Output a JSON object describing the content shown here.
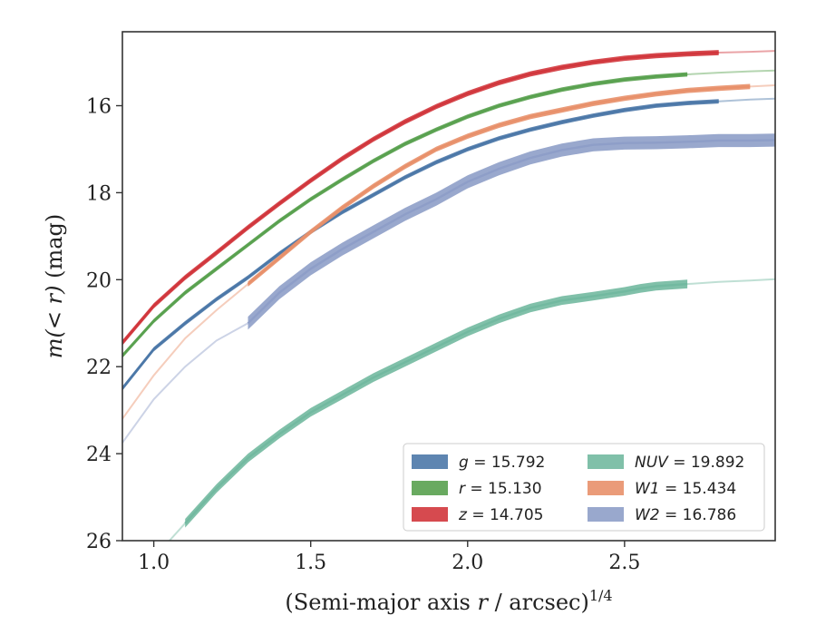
{
  "chart_data": {
    "type": "line",
    "xlabel": "(Semi-major axis r / arcsec)^{1/4}",
    "ylabel": "m(< r) (mag)",
    "xlim": [
      0.9,
      2.98
    ],
    "ylim": [
      26,
      14.3
    ],
    "y_inverted": true,
    "x_ticks": [
      1.0,
      1.5,
      2.0,
      2.5
    ],
    "x_tick_labels": [
      "1.0",
      "1.5",
      "2.0",
      "2.5"
    ],
    "y_ticks": [
      16,
      18,
      20,
      22,
      24,
      26
    ],
    "y_tick_labels": [
      "16",
      "18",
      "20",
      "22",
      "24",
      "26"
    ],
    "grid": false,
    "legend_position": "lower-right",
    "legend_columns": 2,
    "series": [
      {
        "name": "g = 15.792",
        "label_parts": [
          "g",
          " = 15.792"
        ],
        "color": "#4c78a8",
        "band": 0.1,
        "solid_range": [
          0.9,
          2.8
        ],
        "x": [
          0.9,
          1.0,
          1.1,
          1.2,
          1.3,
          1.4,
          1.5,
          1.6,
          1.7,
          1.8,
          1.9,
          2.0,
          2.1,
          2.2,
          2.3,
          2.4,
          2.5,
          2.6,
          2.7,
          2.8,
          2.9,
          2.98
        ],
        "y": [
          22.5,
          21.6,
          21.0,
          20.45,
          19.95,
          19.4,
          18.9,
          18.45,
          18.05,
          17.65,
          17.3,
          17.0,
          16.75,
          16.55,
          16.38,
          16.23,
          16.1,
          16.0,
          15.94,
          15.9,
          15.86,
          15.84
        ]
      },
      {
        "name": "r = 15.130",
        "label_parts": [
          "r",
          " = 15.130"
        ],
        "color": "#59a14f",
        "band": 0.1,
        "solid_range": [
          0.9,
          2.7
        ],
        "x": [
          0.9,
          1.0,
          1.1,
          1.2,
          1.3,
          1.4,
          1.5,
          1.6,
          1.7,
          1.8,
          1.9,
          2.0,
          2.1,
          2.2,
          2.3,
          2.4,
          2.5,
          2.6,
          2.7,
          2.8,
          2.9,
          2.98
        ],
        "y": [
          21.75,
          20.95,
          20.3,
          19.75,
          19.2,
          18.65,
          18.15,
          17.7,
          17.27,
          16.88,
          16.55,
          16.25,
          16.0,
          15.8,
          15.63,
          15.5,
          15.4,
          15.33,
          15.28,
          15.24,
          15.21,
          15.19
        ]
      },
      {
        "name": "z = 14.705",
        "label_parts": [
          "z",
          " = 14.705"
        ],
        "color": "#d1363c",
        "band": 0.12,
        "solid_range": [
          0.9,
          2.8
        ],
        "x": [
          0.9,
          1.0,
          1.1,
          1.2,
          1.3,
          1.4,
          1.5,
          1.6,
          1.7,
          1.8,
          1.9,
          2.0,
          2.1,
          2.2,
          2.3,
          2.4,
          2.5,
          2.6,
          2.7,
          2.8,
          2.9,
          2.98
        ],
        "y": [
          21.45,
          20.6,
          19.95,
          19.38,
          18.8,
          18.25,
          17.72,
          17.22,
          16.77,
          16.37,
          16.02,
          15.72,
          15.47,
          15.27,
          15.12,
          15.0,
          14.91,
          14.85,
          14.81,
          14.78,
          14.76,
          14.74
        ]
      },
      {
        "name": "NUV = 19.892",
        "label_parts": [
          "NUV",
          " = 19.892"
        ],
        "color": "#72b9a0",
        "band": 0.2,
        "solid_range": [
          1.1,
          2.7
        ],
        "x": [
          1.05,
          1.1,
          1.2,
          1.3,
          1.4,
          1.5,
          1.6,
          1.7,
          1.8,
          1.9,
          2.0,
          2.1,
          2.2,
          2.3,
          2.4,
          2.5,
          2.55,
          2.6,
          2.7,
          2.8,
          2.9,
          2.98
        ],
        "y": [
          26.0,
          25.6,
          24.8,
          24.1,
          23.55,
          23.05,
          22.65,
          22.25,
          21.9,
          21.55,
          21.2,
          20.9,
          20.65,
          20.48,
          20.38,
          20.27,
          20.2,
          20.15,
          20.1,
          20.05,
          20.02,
          19.99
        ]
      },
      {
        "name": "W1 = 15.434",
        "label_parts": [
          "W1",
          " = 15.434"
        ],
        "color": "#e8906a",
        "band": 0.12,
        "solid_range": [
          1.29,
          2.95
        ],
        "x": [
          0.9,
          1.0,
          1.1,
          1.2,
          1.3,
          1.4,
          1.5,
          1.6,
          1.7,
          1.8,
          1.9,
          2.0,
          2.1,
          2.2,
          2.3,
          2.4,
          2.5,
          2.6,
          2.7,
          2.8,
          2.9,
          2.98
        ],
        "y": [
          23.2,
          22.2,
          21.35,
          20.7,
          20.1,
          19.5,
          18.9,
          18.35,
          17.85,
          17.4,
          17.0,
          16.7,
          16.45,
          16.25,
          16.1,
          15.95,
          15.83,
          15.73,
          15.65,
          15.6,
          15.56,
          15.53
        ]
      },
      {
        "name": "W2 = 16.786",
        "label_parts": [
          "W2",
          " = 16.786"
        ],
        "color": "#8e9ec8",
        "band": 0.3,
        "solid_range": [
          1.29,
          2.98
        ],
        "x": [
          0.9,
          1.0,
          1.1,
          1.2,
          1.3,
          1.4,
          1.5,
          1.6,
          1.7,
          1.8,
          1.9,
          2.0,
          2.1,
          2.2,
          2.3,
          2.4,
          2.5,
          2.6,
          2.7,
          2.8,
          2.9,
          2.98
        ],
        "y": [
          23.75,
          22.75,
          22.0,
          21.4,
          21.0,
          20.3,
          19.75,
          19.3,
          18.9,
          18.5,
          18.15,
          17.75,
          17.45,
          17.2,
          17.02,
          16.9,
          16.86,
          16.85,
          16.83,
          16.8,
          16.8,
          16.79
        ]
      }
    ]
  }
}
